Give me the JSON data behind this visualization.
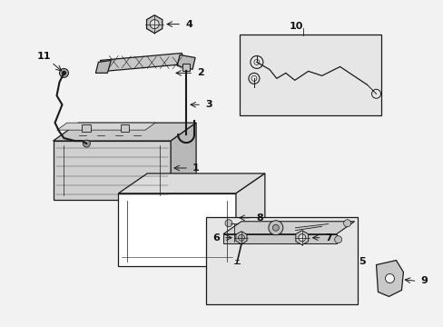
{
  "bg_color": "#f2f2f2",
  "line_color": "#1a1a1a",
  "label_color": "#111111",
  "box_fill_light": "#e8e8e8",
  "box_fill_white": "#ffffff",
  "battery_front": "#d0d0d0",
  "battery_top": "#c8c8c8",
  "battery_side": "#b8b8b8",
  "tray_fill": "#f0f0f0",
  "bracket_fill": "#e0e0e0",
  "inset_fill": "#e4e4e4"
}
